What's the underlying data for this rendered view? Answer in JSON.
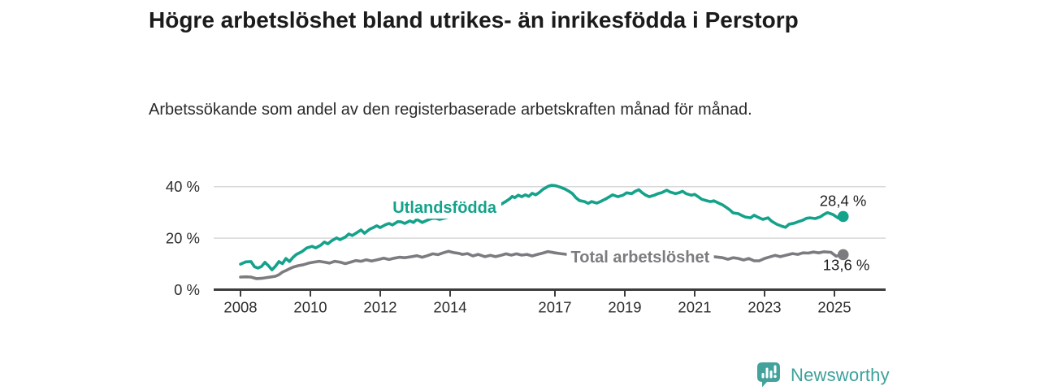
{
  "header": {
    "title": "Högre arbetslöshet bland utrikes- än inrikesfödda i Perstorp",
    "subtitle": "Arbetssökande som andel av den registerbaserade arbetskraften månad för månad."
  },
  "footer": {
    "brand": "Newsworthy"
  },
  "colors": {
    "accent_teal": "#14a28b",
    "line_gray": "#7c7c80",
    "grid": "#d8d8d8",
    "axis": "#3d3d3d",
    "tick_text": "#2d2d2d",
    "value_text": "#1f1f1f",
    "logo_teal": "#43a29c"
  },
  "chart_data": {
    "type": "line",
    "title": "Högre arbetslöshet bland utrikes- än inrikesfödda i Perstorp",
    "xlabel": "",
    "ylabel": "",
    "x_ticks": [
      2008,
      2010,
      2012,
      2014,
      2017,
      2019,
      2021,
      2023,
      2025
    ],
    "y_ticks": [
      0,
      20,
      40
    ],
    "y_tick_suffix": " %",
    "xlim": [
      2006.8,
      2026.5
    ],
    "ylim": [
      0,
      42
    ],
    "grid": "horizontal",
    "legend_position": "inline-labels",
    "series": [
      {
        "name": "Utlandsfödda",
        "color": "#14a28b",
        "end_label": "28,4 %",
        "end_value": 28.4,
        "label_x": 2013.84,
        "label_y": 32.0,
        "end_label_offset": [
          -29,
          -13
        ],
        "points": [
          [
            2008.0,
            9.9
          ],
          [
            2008.15,
            10.8
          ],
          [
            2008.3,
            10.9
          ],
          [
            2008.4,
            8.9
          ],
          [
            2008.5,
            8.4
          ],
          [
            2008.6,
            9.0
          ],
          [
            2008.7,
            10.6
          ],
          [
            2008.8,
            9.3
          ],
          [
            2008.9,
            7.7
          ],
          [
            2009.0,
            9.1
          ],
          [
            2009.1,
            10.9
          ],
          [
            2009.2,
            10.1
          ],
          [
            2009.3,
            12.1
          ],
          [
            2009.4,
            10.9
          ],
          [
            2009.5,
            12.5
          ],
          [
            2009.6,
            13.7
          ],
          [
            2009.75,
            14.7
          ],
          [
            2009.9,
            16.2
          ],
          [
            2010.05,
            16.8
          ],
          [
            2010.15,
            16.2
          ],
          [
            2010.3,
            17.3
          ],
          [
            2010.4,
            18.5
          ],
          [
            2010.5,
            17.8
          ],
          [
            2010.6,
            18.9
          ],
          [
            2010.75,
            20.1
          ],
          [
            2010.85,
            19.4
          ],
          [
            2011.0,
            20.4
          ],
          [
            2011.1,
            21.6
          ],
          [
            2011.2,
            21.0
          ],
          [
            2011.3,
            21.9
          ],
          [
            2011.45,
            23.2
          ],
          [
            2011.55,
            21.9
          ],
          [
            2011.7,
            23.5
          ],
          [
            2011.8,
            24.1
          ],
          [
            2011.9,
            24.8
          ],
          [
            2012.0,
            24.1
          ],
          [
            2012.15,
            25.2
          ],
          [
            2012.25,
            25.7
          ],
          [
            2012.35,
            25.1
          ],
          [
            2012.5,
            26.4
          ],
          [
            2012.6,
            26.3
          ],
          [
            2012.7,
            25.7
          ],
          [
            2012.85,
            26.7
          ],
          [
            2012.95,
            26.1
          ],
          [
            2013.05,
            27.3
          ],
          [
            2013.2,
            26.1
          ],
          [
            2013.4,
            27.3
          ],
          [
            2013.55,
            27.9
          ],
          [
            2013.7,
            27.3
          ],
          [
            2014.0,
            28.3
          ],
          [
            2014.3,
            29.2
          ],
          [
            2014.6,
            30.2
          ],
          [
            2014.9,
            31.2
          ],
          [
            2015.2,
            32.2
          ],
          [
            2015.45,
            33.1
          ],
          [
            2015.6,
            34.3
          ],
          [
            2015.7,
            35.2
          ],
          [
            2015.78,
            36.2
          ],
          [
            2015.85,
            35.7
          ],
          [
            2015.95,
            36.7
          ],
          [
            2016.05,
            36.1
          ],
          [
            2016.15,
            36.8
          ],
          [
            2016.25,
            36.2
          ],
          [
            2016.35,
            37.4
          ],
          [
            2016.45,
            36.8
          ],
          [
            2016.55,
            37.7
          ],
          [
            2016.65,
            38.9
          ],
          [
            2016.8,
            40.1
          ],
          [
            2016.9,
            40.5
          ],
          [
            2017.0,
            40.4
          ],
          [
            2017.15,
            39.8
          ],
          [
            2017.3,
            39.0
          ],
          [
            2017.4,
            38.2
          ],
          [
            2017.5,
            37.3
          ],
          [
            2017.6,
            35.7
          ],
          [
            2017.7,
            34.6
          ],
          [
            2017.85,
            34.2
          ],
          [
            2017.95,
            33.5
          ],
          [
            2018.05,
            34.2
          ],
          [
            2018.2,
            33.6
          ],
          [
            2018.3,
            34.2
          ],
          [
            2018.45,
            35.2
          ],
          [
            2018.55,
            36.0
          ],
          [
            2018.65,
            36.8
          ],
          [
            2018.8,
            36.1
          ],
          [
            2018.95,
            36.7
          ],
          [
            2019.05,
            37.6
          ],
          [
            2019.2,
            37.3
          ],
          [
            2019.3,
            38.2
          ],
          [
            2019.4,
            38.8
          ],
          [
            2019.5,
            37.6
          ],
          [
            2019.6,
            36.7
          ],
          [
            2019.7,
            36.1
          ],
          [
            2019.85,
            36.7
          ],
          [
            2019.95,
            37.3
          ],
          [
            2020.05,
            37.6
          ],
          [
            2020.2,
            38.6
          ],
          [
            2020.3,
            37.9
          ],
          [
            2020.45,
            37.3
          ],
          [
            2020.55,
            37.6
          ],
          [
            2020.65,
            38.2
          ],
          [
            2020.75,
            37.3
          ],
          [
            2020.9,
            36.7
          ],
          [
            2021.0,
            37.0
          ],
          [
            2021.1,
            36.1
          ],
          [
            2021.2,
            35.1
          ],
          [
            2021.35,
            34.5
          ],
          [
            2021.45,
            34.2
          ],
          [
            2021.55,
            34.5
          ],
          [
            2021.7,
            33.5
          ],
          [
            2021.8,
            32.9
          ],
          [
            2021.9,
            32.0
          ],
          [
            2022.0,
            31.0
          ],
          [
            2022.1,
            29.8
          ],
          [
            2022.25,
            29.5
          ],
          [
            2022.35,
            28.8
          ],
          [
            2022.45,
            28.2
          ],
          [
            2022.6,
            27.9
          ],
          [
            2022.7,
            28.9
          ],
          [
            2022.8,
            28.2
          ],
          [
            2022.95,
            27.3
          ],
          [
            2023.1,
            27.9
          ],
          [
            2023.2,
            26.6
          ],
          [
            2023.35,
            25.4
          ],
          [
            2023.5,
            24.6
          ],
          [
            2023.6,
            24.2
          ],
          [
            2023.7,
            25.4
          ],
          [
            2023.85,
            25.8
          ],
          [
            2023.95,
            26.3
          ],
          [
            2024.1,
            27.0
          ],
          [
            2024.2,
            27.7
          ],
          [
            2024.3,
            27.9
          ],
          [
            2024.45,
            27.6
          ],
          [
            2024.6,
            28.3
          ],
          [
            2024.7,
            29.2
          ],
          [
            2024.8,
            29.9
          ],
          [
            2024.95,
            29.2
          ],
          [
            2025.1,
            27.9
          ],
          [
            2025.2,
            27.5
          ],
          [
            2025.25,
            28.4
          ]
        ]
      },
      {
        "name": "Total arbetslöshet",
        "color": "#7c7c80",
        "end_label": "13,6 %",
        "end_value": 13.6,
        "label_x": 2019.44,
        "label_y": 12.8,
        "end_label_offset": [
          -25,
          19
        ],
        "points": [
          [
            2008.0,
            4.9
          ],
          [
            2008.15,
            5.0
          ],
          [
            2008.3,
            4.9
          ],
          [
            2008.45,
            4.3
          ],
          [
            2008.6,
            4.4
          ],
          [
            2008.75,
            4.7
          ],
          [
            2008.9,
            5.0
          ],
          [
            2009.0,
            5.2
          ],
          [
            2009.1,
            5.8
          ],
          [
            2009.2,
            6.8
          ],
          [
            2009.3,
            7.4
          ],
          [
            2009.4,
            8.1
          ],
          [
            2009.5,
            8.7
          ],
          [
            2009.65,
            9.3
          ],
          [
            2009.8,
            9.7
          ],
          [
            2009.95,
            10.3
          ],
          [
            2010.1,
            10.7
          ],
          [
            2010.25,
            11.0
          ],
          [
            2010.4,
            10.7
          ],
          [
            2010.55,
            10.3
          ],
          [
            2010.7,
            11.0
          ],
          [
            2010.85,
            10.7
          ],
          [
            2011.0,
            10.1
          ],
          [
            2011.15,
            10.7
          ],
          [
            2011.3,
            11.3
          ],
          [
            2011.45,
            11.0
          ],
          [
            2011.6,
            11.6
          ],
          [
            2011.75,
            11.1
          ],
          [
            2011.95,
            11.7
          ],
          [
            2012.1,
            12.2
          ],
          [
            2012.25,
            11.7
          ],
          [
            2012.4,
            12.2
          ],
          [
            2012.55,
            12.6
          ],
          [
            2012.7,
            12.4
          ],
          [
            2012.9,
            12.8
          ],
          [
            2013.05,
            13.2
          ],
          [
            2013.2,
            12.6
          ],
          [
            2013.35,
            13.2
          ],
          [
            2013.5,
            13.9
          ],
          [
            2013.65,
            13.6
          ],
          [
            2013.8,
            14.3
          ],
          [
            2013.95,
            14.9
          ],
          [
            2014.1,
            14.4
          ],
          [
            2014.25,
            14.1
          ],
          [
            2014.35,
            13.7
          ],
          [
            2014.5,
            14.0
          ],
          [
            2014.65,
            13.1
          ],
          [
            2014.8,
            13.7
          ],
          [
            2015.0,
            12.8
          ],
          [
            2015.15,
            13.3
          ],
          [
            2015.3,
            12.8
          ],
          [
            2015.45,
            13.3
          ],
          [
            2015.6,
            13.9
          ],
          [
            2015.75,
            13.4
          ],
          [
            2015.9,
            13.9
          ],
          [
            2016.05,
            13.4
          ],
          [
            2016.2,
            13.7
          ],
          [
            2016.35,
            13.1
          ],
          [
            2016.5,
            13.7
          ],
          [
            2016.65,
            14.2
          ],
          [
            2016.8,
            14.8
          ],
          [
            2017.0,
            14.3
          ],
          [
            2017.15,
            14.0
          ],
          [
            2017.4,
            13.6
          ],
          [
            2017.7,
            13.2
          ],
          [
            2018.0,
            12.9
          ],
          [
            2018.3,
            13.0
          ],
          [
            2018.6,
            13.2
          ],
          [
            2018.9,
            13.4
          ],
          [
            2019.2,
            13.3
          ],
          [
            2019.5,
            13.1
          ],
          [
            2019.8,
            13.3
          ],
          [
            2020.1,
            13.8
          ],
          [
            2020.4,
            14.1
          ],
          [
            2020.7,
            13.8
          ],
          [
            2021.0,
            13.4
          ],
          [
            2021.3,
            13.0
          ],
          [
            2021.6,
            12.7
          ],
          [
            2021.8,
            12.4
          ],
          [
            2021.95,
            11.8
          ],
          [
            2022.1,
            12.4
          ],
          [
            2022.25,
            12.1
          ],
          [
            2022.4,
            11.5
          ],
          [
            2022.55,
            12.1
          ],
          [
            2022.7,
            11.2
          ],
          [
            2022.85,
            11.2
          ],
          [
            2023.0,
            12.1
          ],
          [
            2023.15,
            12.7
          ],
          [
            2023.3,
            13.3
          ],
          [
            2023.45,
            12.8
          ],
          [
            2023.6,
            13.3
          ],
          [
            2023.8,
            14.0
          ],
          [
            2023.95,
            13.7
          ],
          [
            2024.1,
            14.3
          ],
          [
            2024.25,
            14.2
          ],
          [
            2024.4,
            14.6
          ],
          [
            2024.55,
            14.3
          ],
          [
            2024.7,
            14.7
          ],
          [
            2024.9,
            14.5
          ],
          [
            2025.05,
            13.0
          ],
          [
            2025.15,
            13.3
          ],
          [
            2025.25,
            13.6
          ]
        ]
      }
    ]
  }
}
